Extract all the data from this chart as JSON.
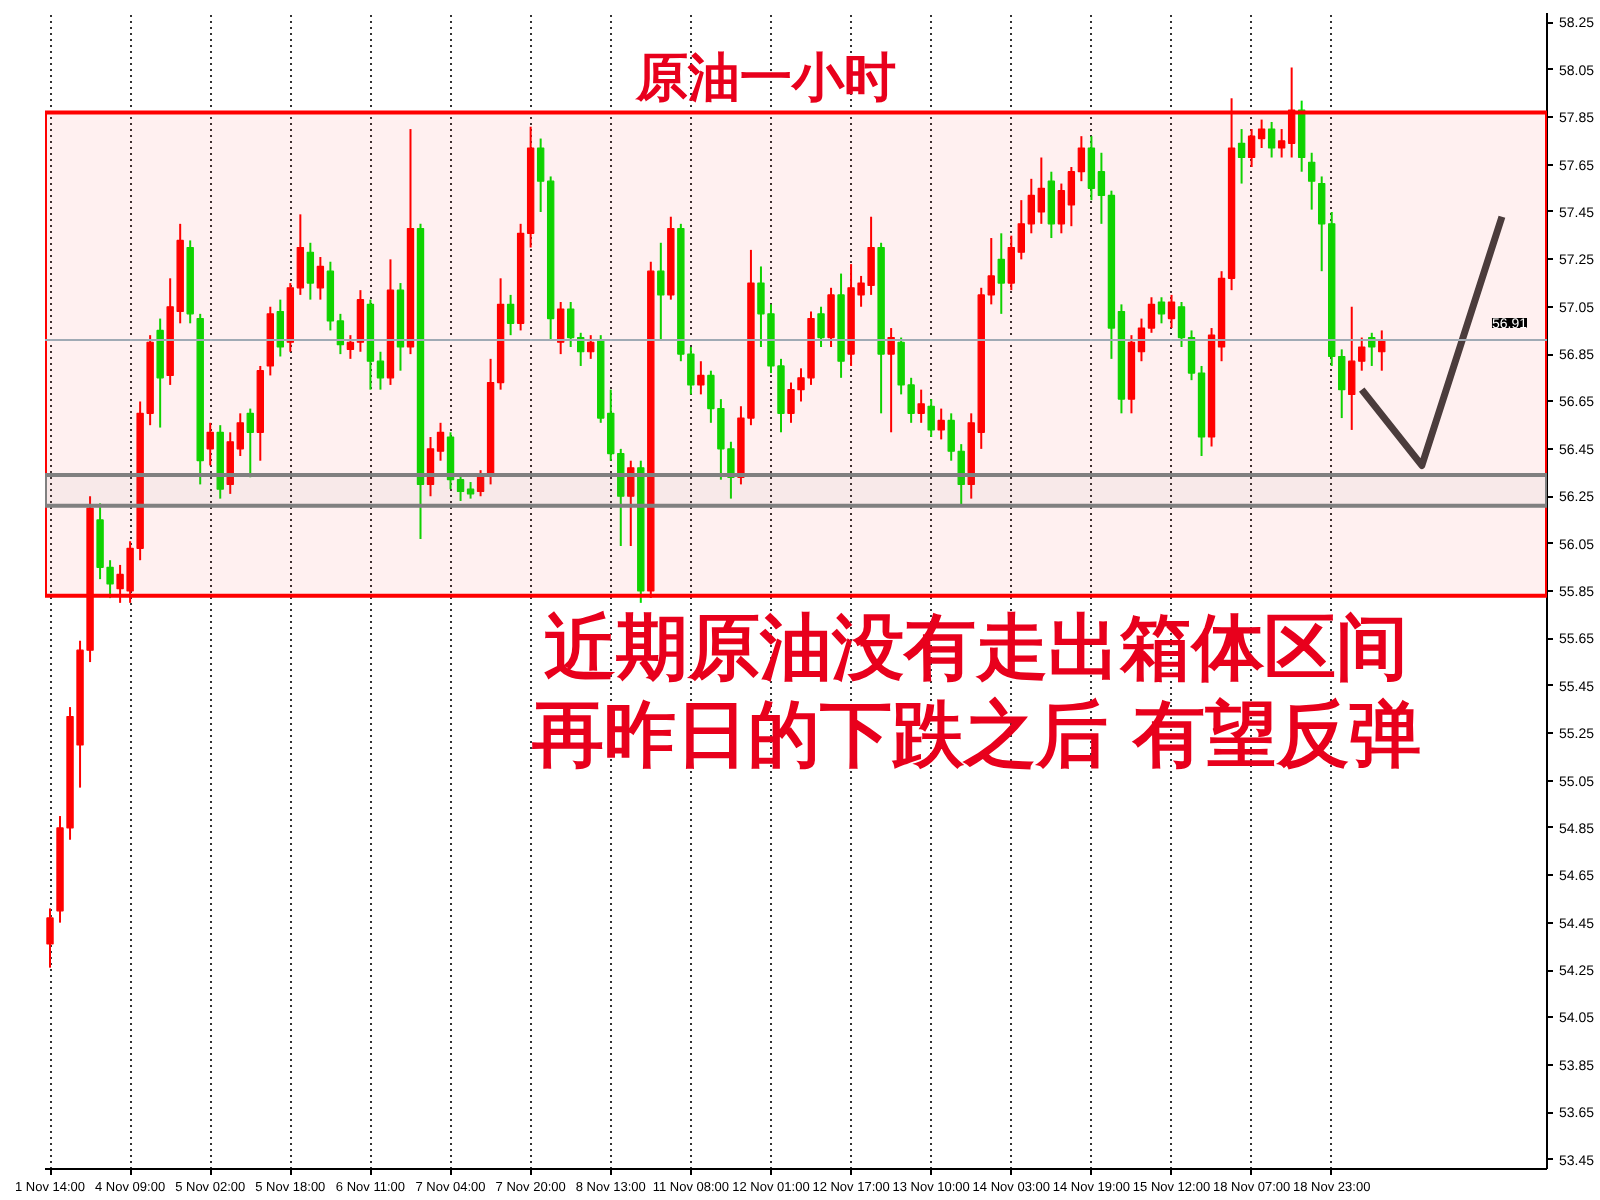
{
  "chart_data": {
    "type": "candlestick",
    "title": "原油一小时",
    "annotations": [
      "近期原油没有走出箱体区间",
      "再昨日的下跌之后 有望反弹"
    ],
    "categories": [
      "1 Nov 14:00",
      null,
      null,
      null,
      null,
      null,
      null,
      null,
      "4 Nov 09:00",
      null,
      null,
      null,
      null,
      null,
      null,
      null,
      "5 Nov 02:00",
      null,
      null,
      null,
      null,
      null,
      null,
      null,
      "5 Nov 18:00",
      null,
      null,
      null,
      null,
      null,
      null,
      null,
      "6 Nov 11:00",
      null,
      null,
      null,
      null,
      null,
      null,
      null,
      "7 Nov 04:00",
      null,
      null,
      null,
      null,
      null,
      null,
      null,
      "7 Nov 20:00",
      null,
      null,
      null,
      null,
      null,
      null,
      null,
      "8 Nov 13:00",
      null,
      null,
      null,
      null,
      null,
      null,
      null,
      "11 Nov 08:00",
      null,
      null,
      null,
      null,
      null,
      null,
      null,
      "12 Nov 01:00",
      null,
      null,
      null,
      null,
      null,
      null,
      null,
      "12 Nov 17:00",
      null,
      null,
      null,
      null,
      null,
      null,
      null,
      "13 Nov 10:00",
      null,
      null,
      null,
      null,
      null,
      null,
      null,
      "14 Nov 03:00",
      null,
      null,
      null,
      null,
      null,
      null,
      null,
      "14 Nov 19:00",
      null,
      null,
      null,
      null,
      null,
      null,
      null,
      "15 Nov 12:00",
      null,
      null,
      null,
      null,
      null,
      null,
      null,
      "18 Nov 07:00",
      null,
      null,
      null,
      null,
      null,
      null,
      null,
      "18 Nov 23:00",
      null,
      null,
      null,
      null,
      null,
      null,
      null,
      null,
      null,
      null,
      null,
      null,
      null,
      null,
      null,
      null,
      null,
      null,
      null,
      null,
      null
    ],
    "ohlc": [
      [
        54.36,
        54.51,
        54.26,
        54.47
      ],
      [
        54.5,
        54.9,
        54.45,
        54.85
      ],
      [
        54.85,
        55.36,
        54.8,
        55.32
      ],
      [
        55.2,
        55.64,
        55.02,
        55.6
      ],
      [
        55.6,
        56.25,
        55.55,
        56.2
      ],
      [
        56.15,
        56.22,
        55.9,
        55.95
      ],
      [
        55.95,
        55.98,
        55.82,
        55.88
      ],
      [
        55.86,
        55.96,
        55.8,
        55.92
      ],
      [
        55.85,
        56.06,
        55.8,
        56.03
      ],
      [
        56.03,
        56.65,
        55.98,
        56.6
      ],
      [
        56.6,
        56.93,
        56.55,
        56.9
      ],
      [
        56.95,
        57.0,
        56.54,
        56.75
      ],
      [
        56.76,
        57.17,
        56.72,
        57.05
      ],
      [
        57.03,
        57.4,
        56.98,
        57.33
      ],
      [
        57.3,
        57.33,
        56.98,
        57.02
      ],
      [
        57.0,
        57.02,
        56.3,
        56.4
      ],
      [
        56.45,
        56.56,
        56.38,
        56.52
      ],
      [
        56.52,
        56.55,
        56.24,
        56.28
      ],
      [
        56.3,
        56.52,
        56.26,
        56.48
      ],
      [
        56.45,
        56.6,
        56.42,
        56.56
      ],
      [
        56.6,
        56.62,
        56.33,
        56.52
      ],
      [
        56.52,
        56.8,
        56.4,
        56.78
      ],
      [
        56.8,
        57.05,
        56.76,
        57.02
      ],
      [
        57.03,
        57.08,
        56.84,
        56.88
      ],
      [
        56.9,
        57.15,
        56.86,
        57.13
      ],
      [
        57.13,
        57.44,
        57.1,
        57.3
      ],
      [
        57.28,
        57.32,
        57.08,
        57.15
      ],
      [
        57.13,
        57.26,
        57.08,
        57.22
      ],
      [
        57.2,
        57.24,
        56.95,
        56.99
      ],
      [
        56.99,
        57.02,
        56.85,
        56.89
      ],
      [
        56.87,
        56.93,
        56.83,
        56.9
      ],
      [
        56.9,
        57.12,
        56.86,
        57.08
      ],
      [
        57.06,
        57.08,
        56.7,
        56.82
      ],
      [
        56.82,
        56.86,
        56.7,
        56.75
      ],
      [
        56.75,
        57.25,
        56.72,
        57.12
      ],
      [
        57.12,
        57.15,
        56.78,
        56.88
      ],
      [
        56.88,
        57.8,
        56.85,
        57.38
      ],
      [
        57.38,
        57.4,
        56.07,
        56.3
      ],
      [
        56.3,
        56.5,
        56.25,
        56.45
      ],
      [
        56.44,
        56.56,
        56.4,
        56.52
      ],
      [
        56.5,
        56.52,
        56.28,
        56.32
      ],
      [
        56.32,
        56.34,
        56.23,
        56.27
      ],
      [
        56.28,
        56.31,
        56.24,
        56.26
      ],
      [
        56.27,
        56.36,
        56.25,
        56.34
      ],
      [
        56.34,
        56.83,
        56.3,
        56.73
      ],
      [
        56.73,
        57.17,
        56.7,
        57.06
      ],
      [
        57.06,
        57.1,
        56.93,
        56.98
      ],
      [
        56.98,
        57.4,
        56.95,
        57.36
      ],
      [
        57.36,
        57.81,
        57.3,
        57.72
      ],
      [
        57.72,
        57.76,
        57.45,
        57.58
      ],
      [
        57.58,
        57.6,
        56.91,
        57.0
      ],
      [
        56.9,
        57.07,
        56.85,
        57.04
      ],
      [
        57.04,
        57.07,
        56.88,
        56.92
      ],
      [
        56.92,
        56.94,
        56.8,
        56.86
      ],
      [
        56.86,
        56.93,
        56.83,
        56.9
      ],
      [
        56.91,
        56.93,
        56.56,
        56.58
      ],
      [
        56.6,
        56.7,
        56.4,
        56.43
      ],
      [
        56.43,
        56.45,
        56.04,
        56.25
      ],
      [
        56.25,
        56.4,
        56.04,
        56.37
      ],
      [
        56.37,
        56.4,
        55.8,
        55.85
      ],
      [
        55.85,
        57.24,
        55.82,
        57.2
      ],
      [
        57.2,
        57.32,
        56.91,
        57.1
      ],
      [
        57.1,
        57.43,
        57.08,
        57.38
      ],
      [
        57.38,
        57.4,
        56.82,
        56.85
      ],
      [
        56.85,
        56.88,
        56.68,
        56.72
      ],
      [
        56.72,
        56.82,
        56.68,
        56.76
      ],
      [
        56.76,
        56.78,
        56.56,
        56.62
      ],
      [
        56.62,
        56.66,
        56.32,
        56.45
      ],
      [
        56.45,
        56.48,
        56.24,
        56.33
      ],
      [
        56.33,
        56.63,
        56.3,
        56.58
      ],
      [
        56.58,
        57.29,
        56.55,
        57.15
      ],
      [
        57.15,
        57.22,
        56.88,
        57.02
      ],
      [
        57.02,
        57.06,
        56.77,
        56.8
      ],
      [
        56.8,
        56.83,
        56.52,
        56.6
      ],
      [
        56.6,
        56.73,
        56.56,
        56.7
      ],
      [
        56.7,
        56.79,
        56.65,
        56.75
      ],
      [
        56.75,
        57.03,
        56.72,
        57.0
      ],
      [
        57.02,
        57.05,
        56.88,
        56.92
      ],
      [
        56.92,
        57.13,
        56.88,
        57.1
      ],
      [
        57.1,
        57.19,
        56.75,
        56.82
      ],
      [
        56.85,
        57.23,
        56.8,
        57.13
      ],
      [
        57.1,
        57.18,
        57.05,
        57.15
      ],
      [
        57.14,
        57.43,
        57.1,
        57.3
      ],
      [
        57.3,
        57.32,
        56.6,
        56.85
      ],
      [
        56.85,
        56.96,
        56.52,
        56.92
      ],
      [
        56.9,
        56.92,
        56.68,
        56.72
      ],
      [
        56.72,
        56.75,
        56.56,
        56.6
      ],
      [
        56.6,
        56.7,
        56.56,
        56.64
      ],
      [
        56.63,
        56.66,
        56.5,
        56.53
      ],
      [
        56.53,
        56.62,
        56.49,
        56.57
      ],
      [
        56.57,
        56.6,
        56.4,
        56.44
      ],
      [
        56.44,
        56.47,
        56.21,
        56.3
      ],
      [
        56.3,
        56.6,
        56.24,
        56.56
      ],
      [
        56.52,
        57.13,
        56.45,
        57.1
      ],
      [
        57.1,
        57.34,
        57.06,
        57.18
      ],
      [
        57.25,
        57.36,
        57.02,
        57.15
      ],
      [
        57.15,
        57.35,
        57.12,
        57.3
      ],
      [
        57.28,
        57.5,
        57.25,
        57.4
      ],
      [
        57.4,
        57.59,
        57.36,
        57.52
      ],
      [
        57.45,
        57.68,
        57.4,
        57.55
      ],
      [
        57.58,
        57.62,
        57.34,
        57.4
      ],
      [
        57.4,
        57.57,
        57.36,
        57.54
      ],
      [
        57.48,
        57.64,
        57.39,
        57.62
      ],
      [
        57.62,
        57.77,
        57.58,
        57.72
      ],
      [
        57.72,
        57.77,
        57.5,
        57.55
      ],
      [
        57.62,
        57.7,
        57.4,
        57.52
      ],
      [
        57.52,
        57.54,
        56.83,
        56.96
      ],
      [
        57.03,
        57.06,
        56.6,
        56.66
      ],
      [
        56.66,
        56.93,
        56.6,
        56.9
      ],
      [
        56.86,
        57.0,
        56.82,
        56.96
      ],
      [
        56.96,
        57.09,
        56.94,
        57.06
      ],
      [
        57.07,
        57.09,
        56.98,
        57.02
      ],
      [
        57.0,
        57.1,
        56.96,
        57.07
      ],
      [
        57.05,
        57.07,
        56.88,
        56.92
      ],
      [
        56.92,
        56.95,
        56.74,
        56.77
      ],
      [
        56.77,
        56.8,
        56.42,
        56.5
      ],
      [
        56.5,
        56.96,
        56.46,
        56.93
      ],
      [
        56.88,
        57.2,
        56.82,
        57.17
      ],
      [
        57.17,
        57.93,
        57.12,
        57.72
      ],
      [
        57.74,
        57.8,
        57.57,
        57.68
      ],
      [
        57.68,
        57.8,
        57.64,
        57.77
      ],
      [
        57.76,
        57.84,
        57.72,
        57.8
      ],
      [
        57.8,
        57.83,
        57.68,
        57.72
      ],
      [
        57.72,
        57.8,
        57.68,
        57.75
      ],
      [
        57.74,
        58.06,
        57.68,
        57.88
      ],
      [
        57.88,
        57.92,
        57.62,
        57.68
      ],
      [
        57.66,
        57.7,
        57.46,
        57.58
      ],
      [
        57.57,
        57.6,
        57.2,
        57.4
      ],
      [
        57.4,
        57.45,
        56.8,
        56.84
      ],
      [
        56.84,
        56.87,
        56.58,
        56.7
      ],
      [
        56.68,
        57.05,
        56.53,
        56.82
      ],
      [
        56.82,
        56.92,
        56.78,
        56.88
      ],
      [
        56.92,
        56.94,
        56.8,
        56.88
      ],
      [
        56.86,
        56.95,
        56.78,
        56.91
      ],
      null,
      null,
      null,
      null,
      null,
      null,
      null,
      null,
      null,
      null,
      null,
      null,
      null,
      null,
      null,
      null
    ],
    "colors": [
      "#ff0000",
      "#ff0000",
      "#ff0000",
      "#ff0000",
      "#ff0000",
      "#00e000",
      "#00e000",
      "#ff0000",
      "#ff0000",
      "#ff0000",
      "#ff0000",
      "#00e000",
      "#ff0000",
      "#ff0000",
      "#00e000",
      "#00e000",
      "#ff0000",
      "#00e000",
      "#ff0000",
      "#ff0000",
      "#00e000",
      "#ff0000",
      "#ff0000",
      "#00e000",
      "#ff0000",
      "#ff0000",
      "#00e000",
      "#ff0000",
      "#00e000",
      "#00e000",
      "#ff0000",
      "#ff0000",
      "#00e000",
      "#00e000",
      "#ff0000",
      "#00e000",
      "#ff0000",
      "#00e000",
      "#ff0000",
      "#ff0000",
      "#00e000",
      "#00e000",
      "#00e000",
      "#ff0000",
      "#ff0000",
      "#ff0000",
      "#00e000",
      "#ff0000",
      "#ff0000",
      "#00e000",
      "#00e000",
      "#ff0000",
      "#00e000",
      "#00e000",
      "#ff0000",
      "#00e000",
      "#00e000",
      "#00e000",
      "#ff0000",
      "#00e000",
      "#ff0000",
      "#00e000",
      "#ff0000",
      "#00e000",
      "#00e000",
      "#ff0000",
      "#00e000",
      "#00e000",
      "#00e000",
      "#ff0000",
      "#ff0000",
      "#00e000",
      "#00e000",
      "#00e000",
      "#ff0000",
      "#ff0000",
      "#ff0000",
      "#00e000",
      "#ff0000",
      "#00e000",
      "#ff0000",
      "#ff0000",
      "#ff0000",
      "#00e000",
      "#ff0000",
      "#00e000",
      "#00e000",
      "#ff0000",
      "#00e000",
      "#ff0000",
      "#00e000",
      "#00e000",
      "#ff0000",
      "#ff0000",
      "#ff0000",
      "#00e000",
      "#ff0000",
      "#ff0000",
      "#ff0000",
      "#ff0000",
      "#00e000",
      "#ff0000",
      "#ff0000",
      "#ff0000",
      "#00e000",
      "#00e000",
      "#00e000",
      "#00e000",
      "#ff0000",
      "#ff0000",
      "#ff0000",
      "#00e000",
      "#ff0000",
      "#00e000",
      "#00e000",
      "#00e000",
      "#ff0000",
      "#ff0000",
      "#ff0000",
      "#00e000",
      "#ff0000",
      "#ff0000",
      "#00e000",
      "#ff0000",
      "#ff0000",
      "#00e000",
      "#00e000",
      "#00e000",
      "#00e000",
      "#00e000",
      "#ff0000",
      "#ff0000",
      "#00e000",
      "#ff0000",
      null,
      null,
      null,
      null,
      null,
      null,
      null,
      null,
      null,
      null,
      null,
      null,
      null,
      null,
      null,
      null
    ],
    "series": [
      {
        "type": "line",
        "color": "#404040",
        "values": [
          null,
          null,
          null,
          null,
          null,
          null,
          null,
          null,
          null,
          null,
          null,
          null,
          null,
          null,
          null,
          null,
          null,
          null,
          null,
          null,
          null,
          null,
          null,
          null,
          null,
          null,
          null,
          null,
          null,
          null,
          null,
          null,
          null,
          null,
          null,
          null,
          null,
          null,
          null,
          null,
          null,
          null,
          null,
          null,
          null,
          null,
          null,
          null,
          null,
          null,
          null,
          null,
          null,
          null,
          null,
          null,
          null,
          null,
          null,
          null,
          null,
          null,
          null,
          null,
          null,
          null,
          null,
          null,
          null,
          null,
          null,
          null,
          null,
          null,
          null,
          null,
          null,
          null,
          null,
          null,
          null,
          null,
          null,
          null,
          null,
          null,
          null,
          null,
          null,
          null,
          null,
          null,
          null,
          null,
          null,
          null,
          null,
          null,
          null,
          null,
          null,
          null,
          null,
          null,
          null,
          null,
          null,
          null,
          null,
          null,
          null,
          null,
          null,
          null,
          null,
          null,
          null,
          null,
          null,
          null,
          null,
          null,
          null,
          null,
          null,
          null,
          null,
          null,
          null,
          null,
          null,
          56.7,
          null,
          null,
          null,
          null,
          null,
          56.38,
          null,
          null,
          null,
          null,
          null,
          null,
          null,
          57.43,
          null,
          null,
          null,
          null
        ]
      }
    ],
    "ylim": [
      53.41,
      58.29
    ],
    "yticks": [
      53.45,
      53.65,
      53.85,
      54.05,
      54.25,
      54.45,
      54.65,
      54.85,
      55.05,
      55.25,
      55.45,
      55.65,
      55.85,
      56.05,
      56.25,
      56.45,
      56.65,
      56.85,
      57.05,
      57.25,
      57.45,
      57.65,
      57.85,
      58.05,
      58.25
    ],
    "ref_lines": [
      {
        "axis": "y",
        "value": 56.91,
        "label": "56.91",
        "color": "#a0aab4"
      }
    ],
    "bands": [
      {
        "axis": "y",
        "from": 55.83,
        "to": 57.87,
        "color": "#ff0000"
      },
      {
        "axis": "y",
        "from": 56.21,
        "to": 56.34,
        "color": "#808080"
      }
    ],
    "grid": "x"
  }
}
